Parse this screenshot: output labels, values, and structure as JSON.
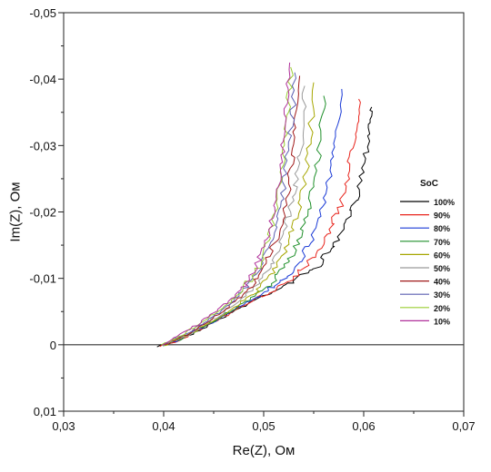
{
  "chart_data": {
    "type": "line",
    "title": "",
    "xlabel": "Re(Z), Ом",
    "ylabel": "Im(Z), Ом",
    "xlim": [
      0.03,
      0.07
    ],
    "ylim": [
      0.01,
      -0.05
    ],
    "y_axis_inverted": true,
    "x_ticks": [
      "0,03",
      "0,04",
      "0,05",
      "0,06",
      "0,07"
    ],
    "y_ticks": [
      "0,01",
      "0",
      "-0,01",
      "-0,02",
      "-0,03",
      "-0,04",
      "-0,05"
    ],
    "grid": false,
    "zero_line": true,
    "legend": {
      "title": "SoC",
      "placement": "right"
    },
    "series": [
      {
        "name": "100%",
        "color": "#000000",
        "x": [
          0.0395,
          0.0415,
          0.0435,
          0.0455,
          0.0475,
          0.0495,
          0.0515,
          0.0535,
          0.0555,
          0.0565,
          0.0575,
          0.0585,
          0.0592,
          0.0598,
          0.0603,
          0.0605,
          0.0608
        ],
        "y": [
          0.0002,
          -0.0006,
          -0.0022,
          -0.0038,
          -0.0054,
          -0.007,
          -0.0085,
          -0.01,
          -0.012,
          -0.014,
          -0.016,
          -0.019,
          -0.022,
          -0.026,
          -0.03,
          -0.033,
          -0.0358
        ]
      },
      {
        "name": "90%",
        "color": "#e8241c",
        "x": [
          0.0397,
          0.0417,
          0.0437,
          0.0457,
          0.0477,
          0.0497,
          0.0515,
          0.053,
          0.0545,
          0.0558,
          0.0568,
          0.0577,
          0.0583,
          0.0588,
          0.0592,
          0.0595
        ],
        "y": [
          0.0002,
          -0.0008,
          -0.0024,
          -0.004,
          -0.0056,
          -0.0072,
          -0.0088,
          -0.0103,
          -0.0125,
          -0.015,
          -0.018,
          -0.021,
          -0.025,
          -0.029,
          -0.033,
          -0.037
        ]
      },
      {
        "name": "80%",
        "color": "#1a3ad6",
        "x": [
          0.0398,
          0.0418,
          0.0438,
          0.0458,
          0.0478,
          0.0496,
          0.0512,
          0.0526,
          0.0538,
          0.0548,
          0.0556,
          0.0563,
          0.0569,
          0.0574,
          0.0578
        ],
        "y": [
          0.0001,
          -0.0009,
          -0.0026,
          -0.0042,
          -0.0058,
          -0.0074,
          -0.009,
          -0.0108,
          -0.013,
          -0.016,
          -0.0195,
          -0.0235,
          -0.0275,
          -0.032,
          -0.0385
        ]
      },
      {
        "name": "70%",
        "color": "#1f8f2a",
        "x": [
          0.0399,
          0.0419,
          0.0439,
          0.0459,
          0.0477,
          0.0494,
          0.0508,
          0.052,
          0.053,
          0.0539,
          0.0546,
          0.0552,
          0.0557,
          0.056
        ],
        "y": [
          0.0001,
          -0.001,
          -0.0027,
          -0.0044,
          -0.006,
          -0.0076,
          -0.0094,
          -0.0115,
          -0.014,
          -0.0175,
          -0.0215,
          -0.026,
          -0.031,
          -0.0375
        ]
      },
      {
        "name": "60%",
        "color": "#a6a600",
        "x": [
          0.04,
          0.042,
          0.044,
          0.0459,
          0.0476,
          0.0491,
          0.0504,
          0.0515,
          0.0524,
          0.0532,
          0.0538,
          0.0543,
          0.0547,
          0.055
        ],
        "y": [
          0.0001,
          -0.0011,
          -0.0028,
          -0.0045,
          -0.0062,
          -0.0079,
          -0.0098,
          -0.0122,
          -0.015,
          -0.0185,
          -0.0225,
          -0.027,
          -0.032,
          -0.0395
        ]
      },
      {
        "name": "50%",
        "color": "#9a9a9a",
        "x": [
          0.0401,
          0.0421,
          0.044,
          0.0458,
          0.0474,
          0.0488,
          0.05,
          0.051,
          0.0518,
          0.0525,
          0.0531,
          0.0536,
          0.0539,
          0.0541
        ],
        "y": [
          0.0001,
          -0.0012,
          -0.0029,
          -0.0047,
          -0.0064,
          -0.0082,
          -0.0102,
          -0.0128,
          -0.016,
          -0.0195,
          -0.0235,
          -0.028,
          -0.033,
          -0.039
        ]
      },
      {
        "name": "40%",
        "color": "#a01818",
        "x": [
          0.0401,
          0.0421,
          0.044,
          0.0457,
          0.0472,
          0.0485,
          0.0497,
          0.0506,
          0.0514,
          0.0521,
          0.0526,
          0.053,
          0.0533,
          0.0536
        ],
        "y": [
          0.0,
          -0.0013,
          -0.003,
          -0.0048,
          -0.0066,
          -0.0085,
          -0.0106,
          -0.0134,
          -0.0168,
          -0.0205,
          -0.025,
          -0.0295,
          -0.0345,
          -0.0405
        ]
      },
      {
        "name": "30%",
        "color": "#5a5fb0",
        "x": [
          0.04,
          0.0419,
          0.0438,
          0.0455,
          0.047,
          0.0483,
          0.0494,
          0.0503,
          0.0511,
          0.0517,
          0.0522,
          0.0526,
          0.0529,
          0.0531
        ],
        "y": [
          0.0,
          -0.0014,
          -0.0031,
          -0.0049,
          -0.0067,
          -0.0087,
          -0.011,
          -0.014,
          -0.0175,
          -0.0215,
          -0.026,
          -0.0305,
          -0.0355,
          -0.041
        ]
      },
      {
        "name": "20%",
        "color": "#9acd32",
        "x": [
          0.0399,
          0.0418,
          0.0437,
          0.0454,
          0.0469,
          0.0482,
          0.0493,
          0.0502,
          0.0509,
          0.0515,
          0.0519,
          0.0522,
          0.0525,
          0.0527
        ],
        "y": [
          0.0,
          -0.0014,
          -0.0032,
          -0.005,
          -0.0068,
          -0.0089,
          -0.0113,
          -0.0144,
          -0.018,
          -0.022,
          -0.0265,
          -0.031,
          -0.036,
          -0.0418
        ]
      },
      {
        "name": "10%",
        "color": "#b0309a",
        "x": [
          0.0398,
          0.0417,
          0.0436,
          0.0453,
          0.0468,
          0.0481,
          0.0492,
          0.0501,
          0.0508,
          0.0513,
          0.0517,
          0.052,
          0.0523,
          0.0526
        ],
        "y": [
          0.0,
          -0.0015,
          -0.0033,
          -0.0051,
          -0.0069,
          -0.0091,
          -0.0116,
          -0.0148,
          -0.0185,
          -0.0225,
          -0.027,
          -0.0315,
          -0.0365,
          -0.0425
        ]
      }
    ]
  }
}
